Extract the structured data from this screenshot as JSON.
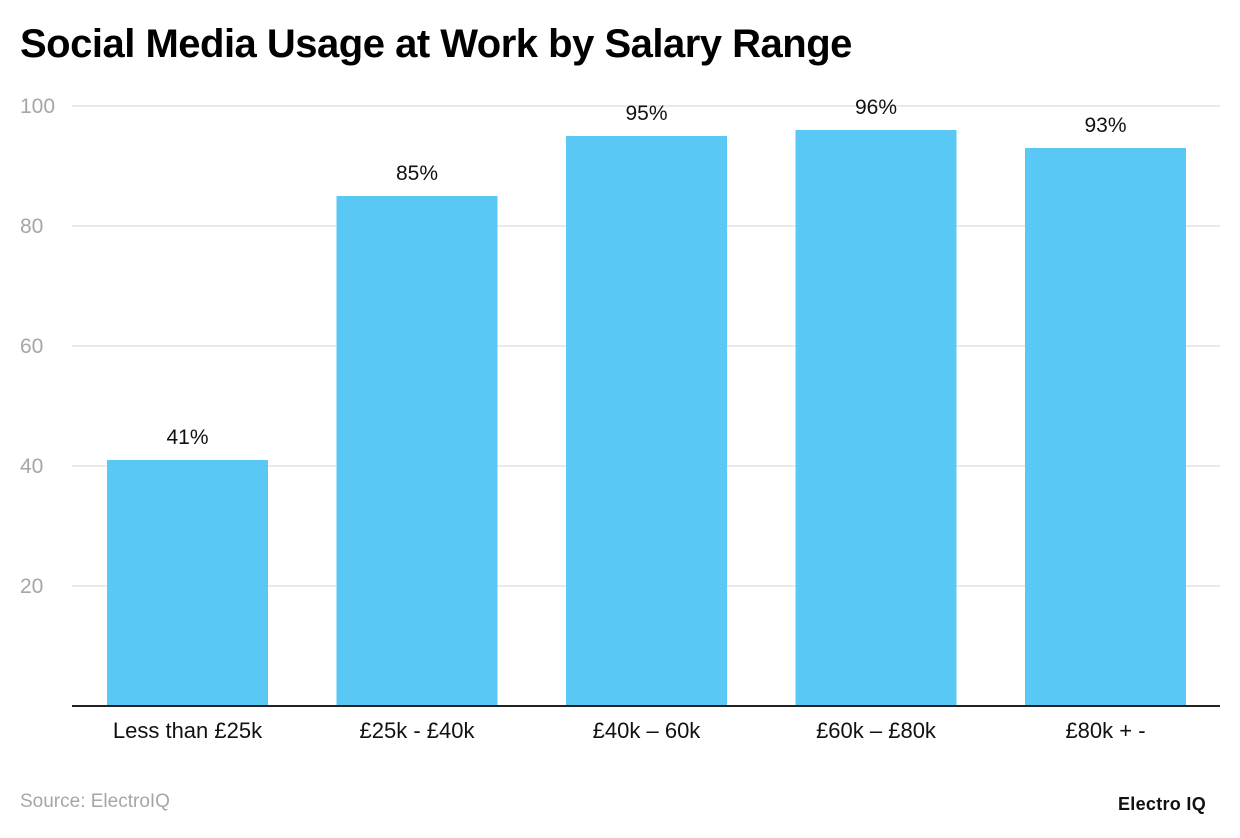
{
  "title": "Social Media Usage at Work by Salary Range",
  "source": "Source: ElectroIQ",
  "brand": "Electro IQ",
  "colors": {
    "bar": "#5ac8f5",
    "grid": "#e3e3e3",
    "axis": "#222222"
  },
  "chart_data": {
    "type": "bar",
    "title": "Social Media Usage at Work by Salary Range",
    "categories": [
      "Less than £25k",
      "£25k - £40k",
      "£40k – 60k",
      "£60k – £80k",
      "£80k + -"
    ],
    "values": [
      41,
      85,
      95,
      96,
      93
    ],
    "data_labels": [
      "41%",
      "85%",
      "95%",
      "96%",
      "93%"
    ],
    "yticks": [
      20,
      40,
      60,
      80,
      100
    ],
    "ylim": [
      0,
      100
    ],
    "grid": true,
    "xlabel": "",
    "ylabel": ""
  }
}
